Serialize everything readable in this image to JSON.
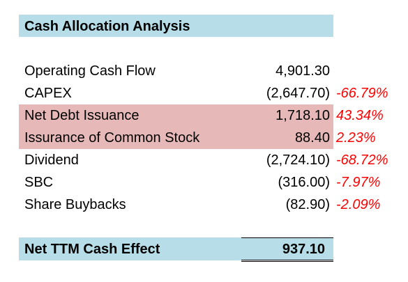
{
  "title": "Cash Allocation Analysis",
  "rows": [
    {
      "label": "Operating Cash Flow",
      "value": "4,901.30",
      "pct": ""
    },
    {
      "label": "CAPEX",
      "value": "(2,647.70)",
      "pct": "-66.79%"
    },
    {
      "label": "Net Debt Issuance",
      "value": "1,718.10",
      "pct": "43.34%"
    },
    {
      "label": "Issurance of Common Stock",
      "value": "88.40",
      "pct": "2.23%"
    },
    {
      "label": "Dividend",
      "value": "(2,724.10)",
      "pct": "-68.72%"
    },
    {
      "label": "SBC",
      "value": "(316.00)",
      "pct": "-7.97%"
    },
    {
      "label": "Share Buybacks",
      "value": "(82.90)",
      "pct": "-2.09%"
    }
  ],
  "total": {
    "label": "Net TTM Cash Effect",
    "value": "937.10"
  },
  "colors": {
    "header_fill": "#b7dee8",
    "highlight_fill": "#e6b8b7",
    "percent_text": "#ff0000"
  }
}
